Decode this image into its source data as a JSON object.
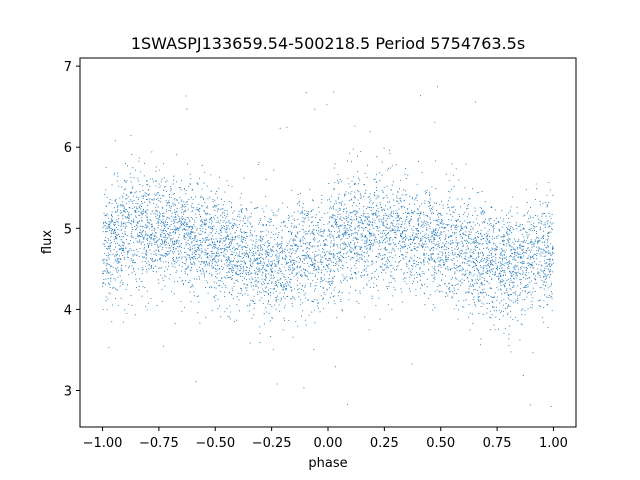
{
  "chart_data": {
    "type": "scatter",
    "title": "1SWASPJ133659.54-500218.5 Period 5754763.5s",
    "xlabel": "phase",
    "ylabel": "flux",
    "xlim": [
      -1.1,
      1.1
    ],
    "ylim": [
      2.55,
      7.1
    ],
    "xticks": [
      -1.0,
      -0.75,
      -0.5,
      -0.25,
      0.0,
      0.25,
      0.5,
      0.75,
      1.0
    ],
    "xtick_labels": [
      "−1.00",
      "−0.75",
      "−0.50",
      "−0.25",
      "0.00",
      "0.25",
      "0.50",
      "0.75",
      "1.00"
    ],
    "yticks": [
      3,
      4,
      5,
      6,
      7
    ],
    "ytick_labels": [
      "3",
      "4",
      "5",
      "6",
      "7"
    ],
    "grid": false,
    "marker_color": "#1f77b4",
    "series": [
      {
        "description_of_points": "dense cloud of photometric points folded on phase, main band flux ~4.0-5.6, scattered outliers ~2.75-6.85, repeated over two cycles",
        "profile_phase": [
          0.0,
          0.1,
          0.2,
          0.3,
          0.4,
          0.5,
          0.6,
          0.7,
          0.8,
          0.9,
          1.0
        ],
        "profile_flux": [
          4.7,
          5.0,
          5.0,
          4.95,
          4.9,
          4.8,
          4.7,
          4.6,
          4.55,
          4.7,
          4.7
        ],
        "profile_spread": [
          0.45,
          0.5,
          0.5,
          0.45,
          0.45,
          0.45,
          0.45,
          0.45,
          0.45,
          0.45,
          0.45
        ],
        "outlier_flux_range": [
          2.75,
          6.85
        ]
      }
    ]
  }
}
